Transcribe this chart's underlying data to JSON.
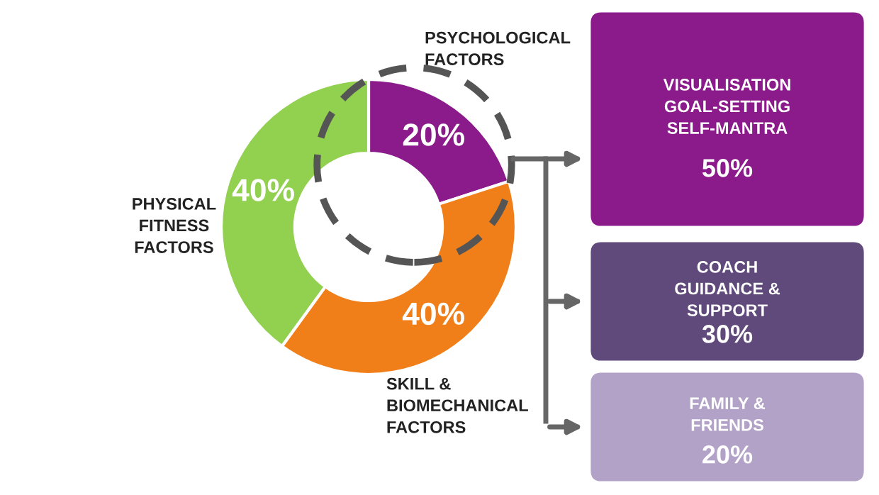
{
  "chart_data": [
    {
      "type": "donut",
      "categories": [
        "PSYCHOLOGICAL\nFACTORS",
        "SKILL &\nBIOMECHANICAL\nFACTORS",
        "PHYSICAL\nFITNESS\nFACTORS"
      ],
      "values": [
        20,
        40,
        40
      ],
      "colors": [
        "#8b1a8b",
        "#f07f1a",
        "#92d050"
      ],
      "value_labels": [
        "20%",
        "40%",
        "40%"
      ]
    },
    {
      "type": "other",
      "categories": [
        "VISUALISATION\nGOAL-SETTING\nSELF-MANTRA",
        "COACH\nGUIDANCE &\nSUPPORT",
        "FAMILY &\nFRIENDS"
      ],
      "values": [
        50,
        30,
        20
      ],
      "colors": [
        "#8b1a8b",
        "#604a7b",
        "#b3a2c7"
      ],
      "value_labels": [
        "50%",
        "30%",
        "20%"
      ]
    }
  ]
}
